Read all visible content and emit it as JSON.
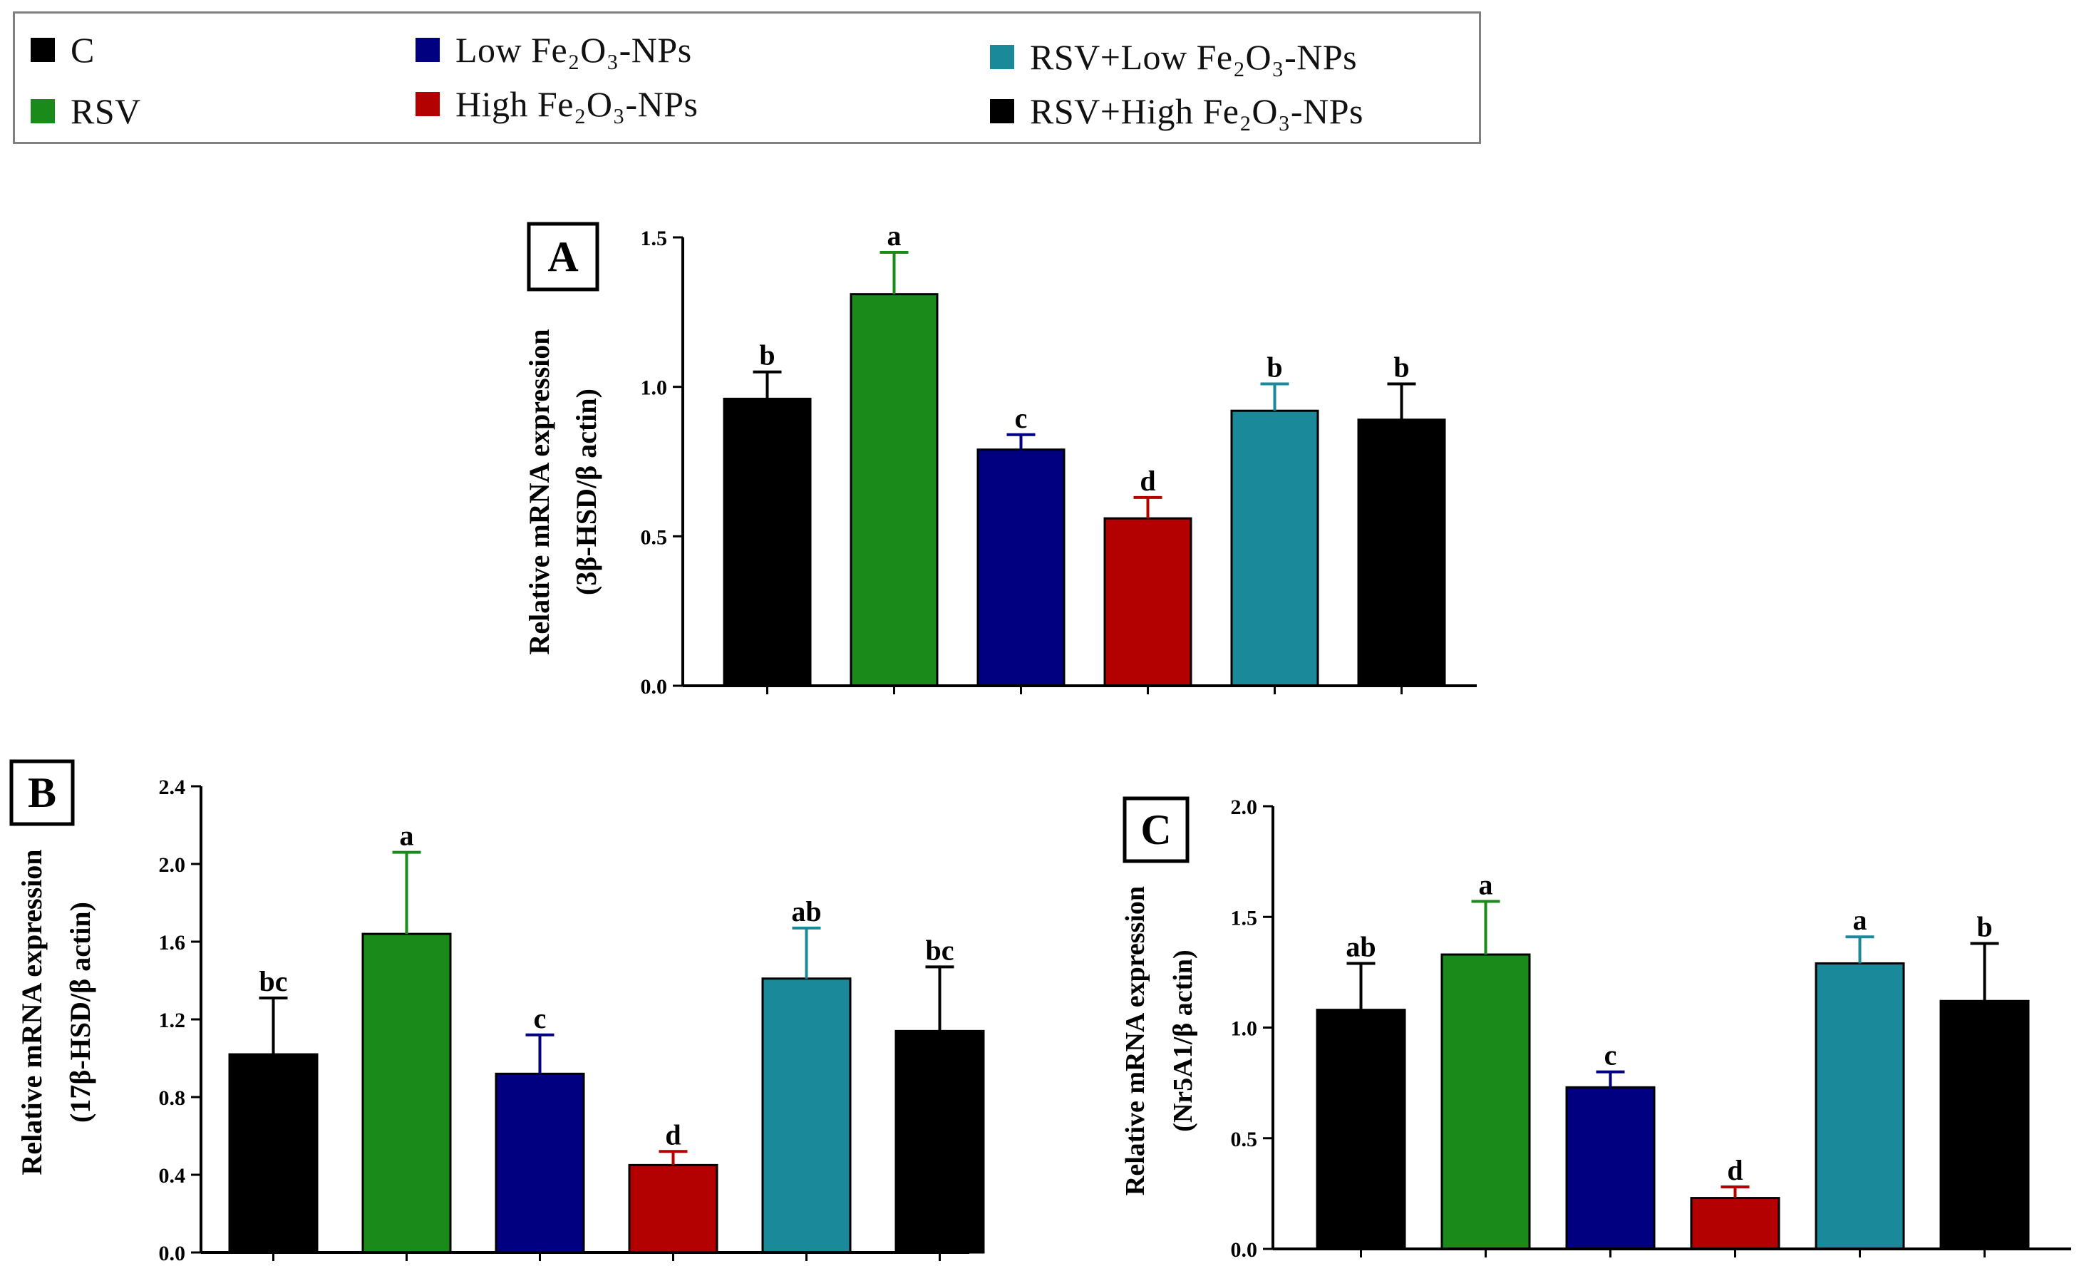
{
  "legend": {
    "items": [
      {
        "label": "C",
        "color": "#000000"
      },
      {
        "label": "RSV",
        "color": "#1a8a1a"
      },
      {
        "label": "Low Fe₂O₃-NPs",
        "color": "#000080"
      },
      {
        "label": "High Fe₂O₃-NPs",
        "color": "#b30000"
      },
      {
        "label": "RSV+Low Fe₂O₃-NPs",
        "color": "#1a8a9a"
      },
      {
        "label": "RSV+High Fe₂O₃-NPs",
        "color": "#000000"
      }
    ]
  },
  "chart_data": [
    {
      "panel": "A",
      "type": "bar",
      "categories": [
        "C",
        "RSV",
        "Low Fe₂O₃-NPs",
        "High Fe₂O₃-NPs",
        "RSV+Low Fe₂O₃-NPs",
        "RSV+High Fe₂O₃-NPs"
      ],
      "values": [
        0.96,
        1.31,
        0.79,
        0.56,
        0.92,
        0.89
      ],
      "errors": [
        0.09,
        0.14,
        0.05,
        0.07,
        0.09,
        0.12
      ],
      "significance": [
        "b",
        "a",
        "c",
        "d",
        "b",
        "b"
      ],
      "ylabel": [
        "Relative mRNA expression",
        "(3β-HSD/β actin)"
      ],
      "ylim": [
        0,
        1.5
      ],
      "yticks": [
        "0.0",
        "0.5",
        "1.0",
        "1.5"
      ],
      "grid": false
    },
    {
      "panel": "B",
      "type": "bar",
      "categories": [
        "C",
        "RSV",
        "Low Fe₂O₃-NPs",
        "High Fe₂O₃-NPs",
        "RSV+Low Fe₂O₃-NPs",
        "RSV+High Fe₂O₃-NPs"
      ],
      "values": [
        1.02,
        1.64,
        0.92,
        0.45,
        1.41,
        1.14
      ],
      "errors": [
        0.29,
        0.42,
        0.2,
        0.07,
        0.26,
        0.33
      ],
      "significance": [
        "bc",
        "a",
        "c",
        "d",
        "ab",
        "bc"
      ],
      "ylabel": [
        "Relative mRNA expression",
        "(17β-HSD/β actin)"
      ],
      "ylim": [
        0,
        2.4
      ],
      "yticks": [
        "0.0",
        "0.4",
        "0.8",
        "1.2",
        "1.6",
        "2.0",
        "2.4"
      ],
      "grid": false
    },
    {
      "panel": "C",
      "type": "bar",
      "categories": [
        "C",
        "RSV",
        "Low Fe₂O₃-NPs",
        "High Fe₂O₃-NPs",
        "RSV+Low Fe₂O₃-NPs",
        "RSV+High Fe₂O₃-NPs"
      ],
      "values": [
        1.08,
        1.33,
        0.73,
        0.23,
        1.29,
        1.12
      ],
      "errors": [
        0.21,
        0.24,
        0.07,
        0.05,
        0.12,
        0.26
      ],
      "significance": [
        "ab",
        "a",
        "c",
        "d",
        "a",
        "b"
      ],
      "ylabel": [
        "Relative mRNA expression",
        "(Nr5A1/β actin)"
      ],
      "ylim": [
        0,
        2.0
      ],
      "yticks": [
        "0.0",
        "0.5",
        "1.0",
        "1.5",
        "2.0"
      ],
      "grid": false
    }
  ]
}
